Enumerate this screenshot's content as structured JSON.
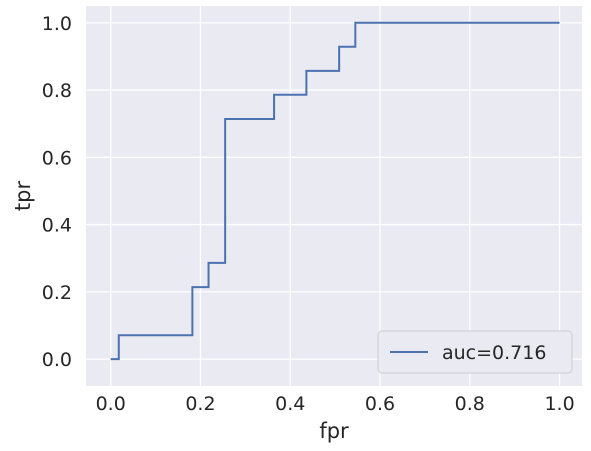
{
  "chart_data": {
    "type": "line",
    "xlabel": "fpr",
    "ylabel": "tpr",
    "xlim": [
      -0.055,
      1.05
    ],
    "ylim": [
      -0.08,
      1.05
    ],
    "xticks": [
      0.0,
      0.2,
      0.4,
      0.6,
      0.8,
      1.0
    ],
    "yticks": [
      0.0,
      0.2,
      0.4,
      0.6,
      0.8,
      1.0
    ],
    "xtick_labels": [
      "0.0",
      "0.2",
      "0.4",
      "0.6",
      "0.8",
      "1.0"
    ],
    "ytick_labels": [
      "0.0",
      "0.2",
      "0.4",
      "0.6",
      "0.8",
      "1.0"
    ],
    "grid": true,
    "legend_position": "lower-right",
    "colors": {
      "line": "#4c72b0",
      "background": "#eaeaf2",
      "grid": "#ffffff"
    },
    "series": [
      {
        "name": "auc=0.716",
        "step": true,
        "x": [
          0.0,
          0.018,
          0.018,
          0.182,
          0.182,
          0.218,
          0.218,
          0.255,
          0.255,
          0.364,
          0.364,
          0.436,
          0.436,
          0.509,
          0.509,
          0.545,
          0.545,
          1.0
        ],
        "y": [
          0.0,
          0.0,
          0.071,
          0.071,
          0.214,
          0.214,
          0.286,
          0.286,
          0.714,
          0.714,
          0.786,
          0.786,
          0.857,
          0.857,
          0.929,
          0.929,
          1.0,
          1.0
        ]
      }
    ]
  }
}
